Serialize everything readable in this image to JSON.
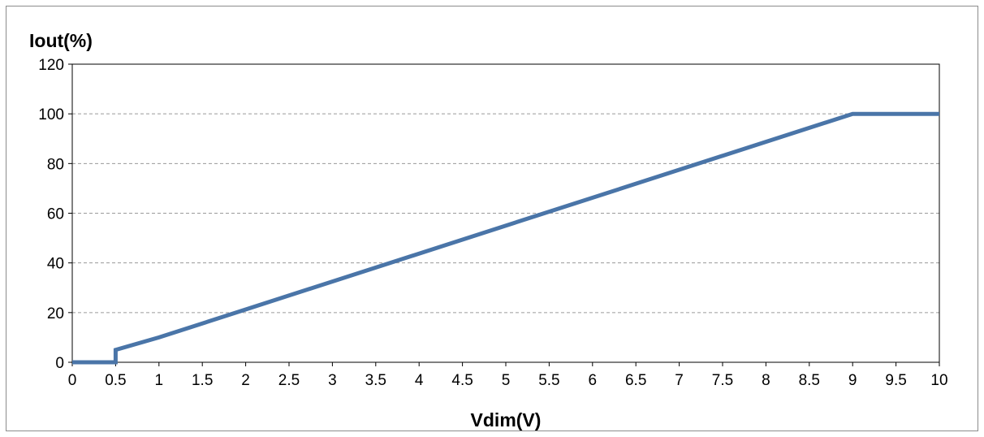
{
  "chart_data": {
    "type": "line",
    "title": "",
    "xlabel": "Vdim(V)",
    "ylabel": "Iout(%)",
    "xlim": [
      0,
      10
    ],
    "ylim": [
      0,
      120
    ],
    "x_ticks": [
      0,
      0.5,
      1,
      1.5,
      2,
      2.5,
      3,
      3.5,
      4,
      4.5,
      5,
      5.5,
      6,
      6.5,
      7,
      7.5,
      8,
      8.5,
      9,
      9.5,
      10
    ],
    "x_tick_labels": [
      "0",
      "0.5",
      "1",
      "1.5",
      "2",
      "2.5",
      "3",
      "3.5",
      "4",
      "4.5",
      "5",
      "5.5",
      "6",
      "6.5",
      "7",
      "7.5",
      "8",
      "8.5",
      "9",
      "9.5",
      "10"
    ],
    "y_ticks": [
      0,
      20,
      40,
      60,
      80,
      100,
      120
    ],
    "y_tick_labels": [
      "0",
      "20",
      "40",
      "60",
      "80",
      "100",
      "120"
    ],
    "grid": "horizontal dashed",
    "legend": "none",
    "series": [
      {
        "color": "#4a75a8",
        "x": [
          0,
          0.5,
          0.5,
          1,
          9,
          10
        ],
        "y": [
          0,
          0,
          5,
          10,
          100,
          100
        ]
      }
    ]
  },
  "colors": {
    "line": "#4a75a8",
    "grid": "#9a9a9a",
    "axis": "#000000",
    "frame": "#8c8c8c"
  }
}
